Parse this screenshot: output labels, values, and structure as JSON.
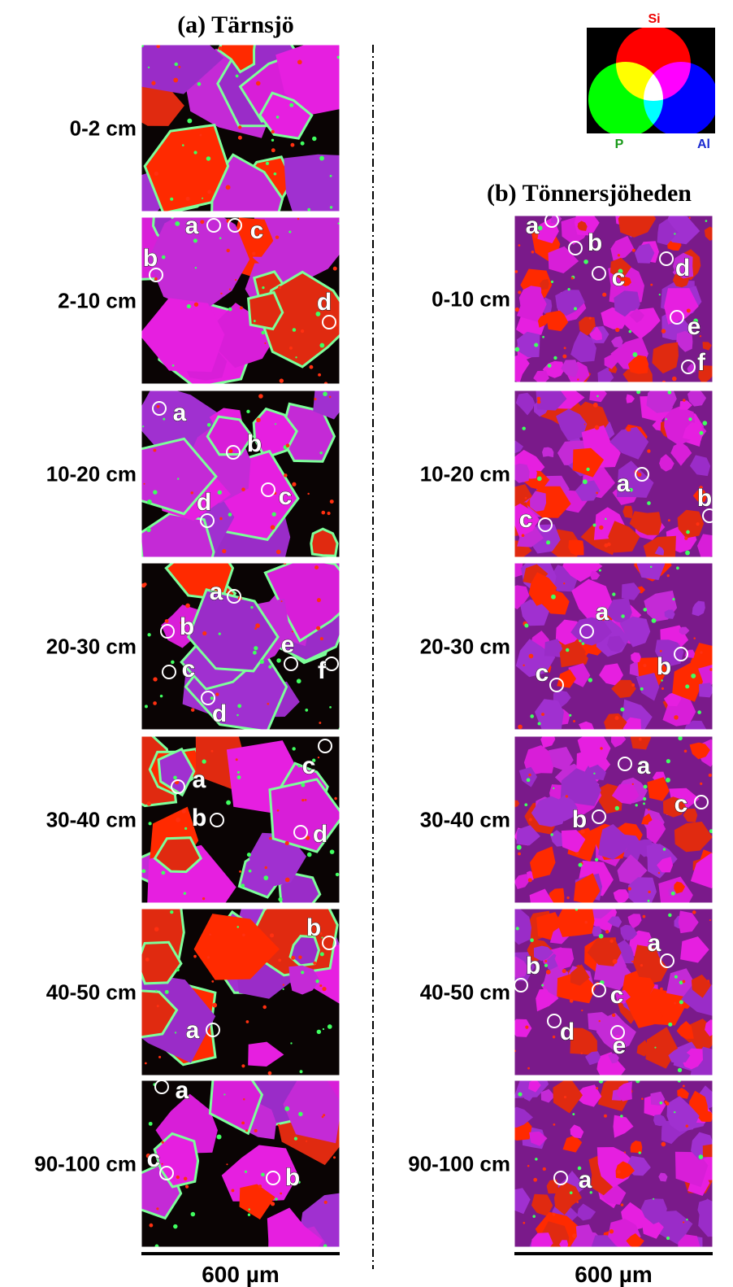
{
  "legend": {
    "si": "Si",
    "p": "P",
    "al": "Al"
  },
  "panels": [
    {
      "title": "(a) Tärnsjö",
      "scale_bar": "600 µm",
      "rows": [
        {
          "depth": "0-2 cm",
          "points": []
        },
        {
          "depth": "2-10 cm",
          "points": [
            "a",
            "b",
            "c",
            "d"
          ]
        },
        {
          "depth": "10-20 cm",
          "points": [
            "a",
            "b",
            "c",
            "d"
          ]
        },
        {
          "depth": "20-30 cm",
          "points": [
            "a",
            "b",
            "c",
            "d",
            "e",
            "f"
          ]
        },
        {
          "depth": "30-40 cm",
          "points": [
            "a",
            "b",
            "c",
            "d"
          ]
        },
        {
          "depth": "40-50 cm",
          "points": [
            "a",
            "b"
          ]
        },
        {
          "depth": "90-100 cm",
          "points": [
            "a",
            "b",
            "c"
          ]
        }
      ]
    },
    {
      "title": "(b) Tönnersjöheden",
      "scale_bar": "600 µm",
      "rows": [
        {
          "depth": "0-10 cm",
          "points": [
            "a",
            "b",
            "c",
            "d",
            "e",
            "f"
          ]
        },
        {
          "depth": "10-20 cm",
          "points": [
            "a",
            "b",
            "c"
          ]
        },
        {
          "depth": "20-30 cm",
          "points": [
            "a",
            "b",
            "c"
          ]
        },
        {
          "depth": "30-40 cm",
          "points": [
            "a",
            "b",
            "c"
          ]
        },
        {
          "depth": "40-50 cm",
          "points": [
            "a",
            "b",
            "c",
            "d",
            "e"
          ]
        },
        {
          "depth": "90-100 cm",
          "points": [
            "a"
          ]
        }
      ]
    }
  ]
}
